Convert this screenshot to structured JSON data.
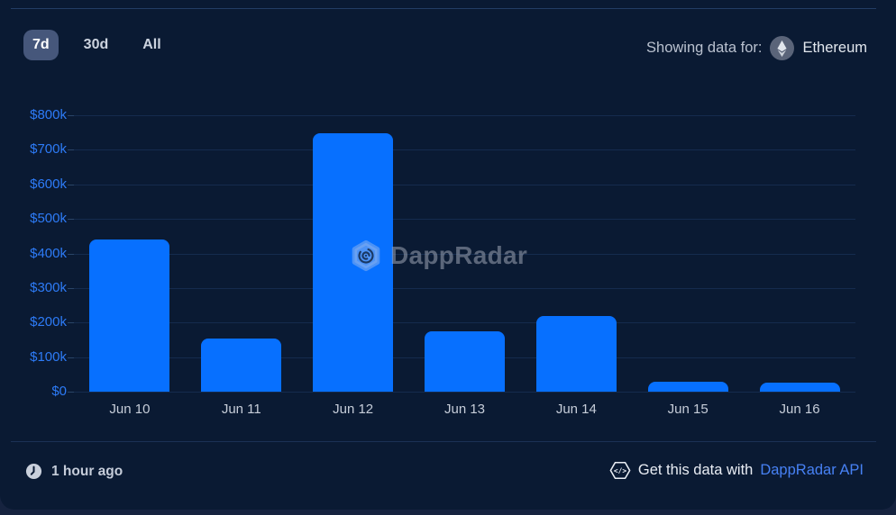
{
  "toolbar": {
    "ranges": [
      {
        "label": "7d",
        "selected": true
      },
      {
        "label": "30d",
        "selected": false
      },
      {
        "label": "All",
        "selected": false
      }
    ],
    "showing_label": "Showing data for:",
    "network": "Ethereum"
  },
  "chart_data": {
    "type": "bar",
    "categories": [
      "Jun 10",
      "Jun 11",
      "Jun 12",
      "Jun 13",
      "Jun 14",
      "Jun 15",
      "Jun 16"
    ],
    "values": [
      440000,
      155000,
      748000,
      175000,
      220000,
      30000,
      27000
    ],
    "title": "",
    "xlabel": "",
    "ylabel": "",
    "ylim": [
      0,
      800000
    ],
    "yticks": [
      "$800k",
      "$700k",
      "$600k",
      "$500k",
      "$400k",
      "$300k",
      "$200k",
      "$100k",
      "$0"
    ],
    "grid": true,
    "legend": "none",
    "bar_color": "#0770ff",
    "axis_label_color": "#2d7bf7",
    "watermark": "DappRadar"
  },
  "footer": {
    "updated": "1 hour ago",
    "cta_prefix": "Get this data with",
    "cta_link": "DappRadar API"
  }
}
